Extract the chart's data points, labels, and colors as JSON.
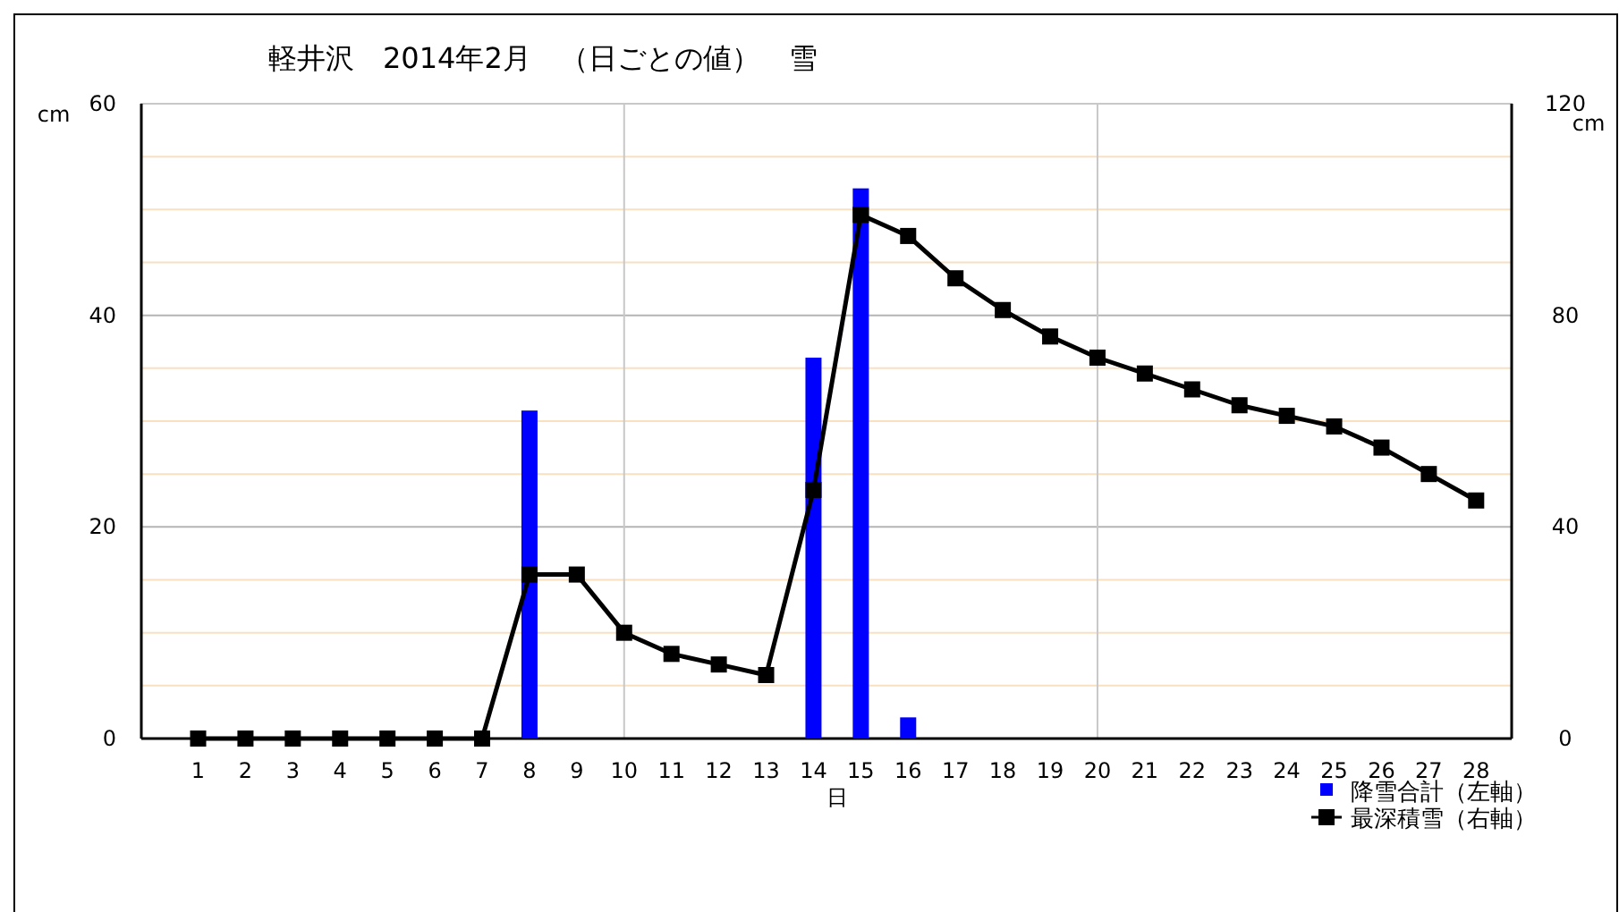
{
  "chart_data": {
    "type": "bar",
    "title": "軽井沢　2014年2月　（日ごとの値）　雪",
    "xlabel": "日",
    "ylabel": "cm",
    "y2label": "cm",
    "x": [
      1,
      2,
      3,
      4,
      5,
      6,
      7,
      8,
      9,
      10,
      11,
      12,
      13,
      14,
      15,
      16,
      17,
      18,
      19,
      20,
      21,
      22,
      23,
      24,
      25,
      26,
      27,
      28
    ],
    "xlim": [
      -0.2,
      28.75
    ],
    "xticks": [
      1,
      2,
      3,
      4,
      5,
      6,
      7,
      8,
      9,
      10,
      11,
      12,
      13,
      14,
      15,
      16,
      17,
      18,
      19,
      20,
      21,
      22,
      23,
      24,
      25,
      26,
      27,
      28
    ],
    "ylim": [
      0,
      60
    ],
    "yticks": [
      0,
      {
        "value": 5,
        "label": null
      },
      {
        "value": 10,
        "label": null
      },
      {
        "value": 15,
        "label": null
      },
      20,
      {
        "value": 25,
        "label": null
      },
      {
        "value": 30,
        "label": null
      },
      {
        "value": 35,
        "label": null
      },
      40,
      {
        "value": 45,
        "label": null
      },
      {
        "value": 50,
        "label": null
      },
      {
        "value": 55,
        "label": null
      },
      60
    ],
    "y2lim": [
      0,
      120
    ],
    "y2ticks": [
      0,
      40,
      80,
      120
    ],
    "grid": "y",
    "legend": "bottom right",
    "ref_lines": [
      {
        "axis": "x",
        "value": 10,
        "color": "#c8c8c8"
      },
      {
        "axis": "x",
        "value": 20,
        "color": "#c8c8c8"
      }
    ],
    "series": [
      {
        "name": "降雪合計（左軸）",
        "color": "#0000ff",
        "values": [
          0,
          0,
          0,
          0,
          0,
          0,
          0,
          31,
          0,
          0,
          0,
          0,
          0,
          36,
          52,
          2,
          0,
          0,
          0,
          0,
          0,
          0,
          0,
          0,
          0,
          0,
          0,
          0
        ]
      },
      {
        "name": "最深積雪（右軸）",
        "type": "line",
        "axis": "y2",
        "color": "#000000",
        "marker": "square",
        "line_style": "solid",
        "values": [
          0,
          0,
          0,
          0,
          0,
          0,
          0,
          31,
          31,
          20,
          16,
          14,
          12,
          47,
          99,
          95,
          87,
          81,
          76,
          72,
          69,
          66,
          63,
          61,
          59,
          55,
          50,
          45
        ]
      }
    ]
  }
}
